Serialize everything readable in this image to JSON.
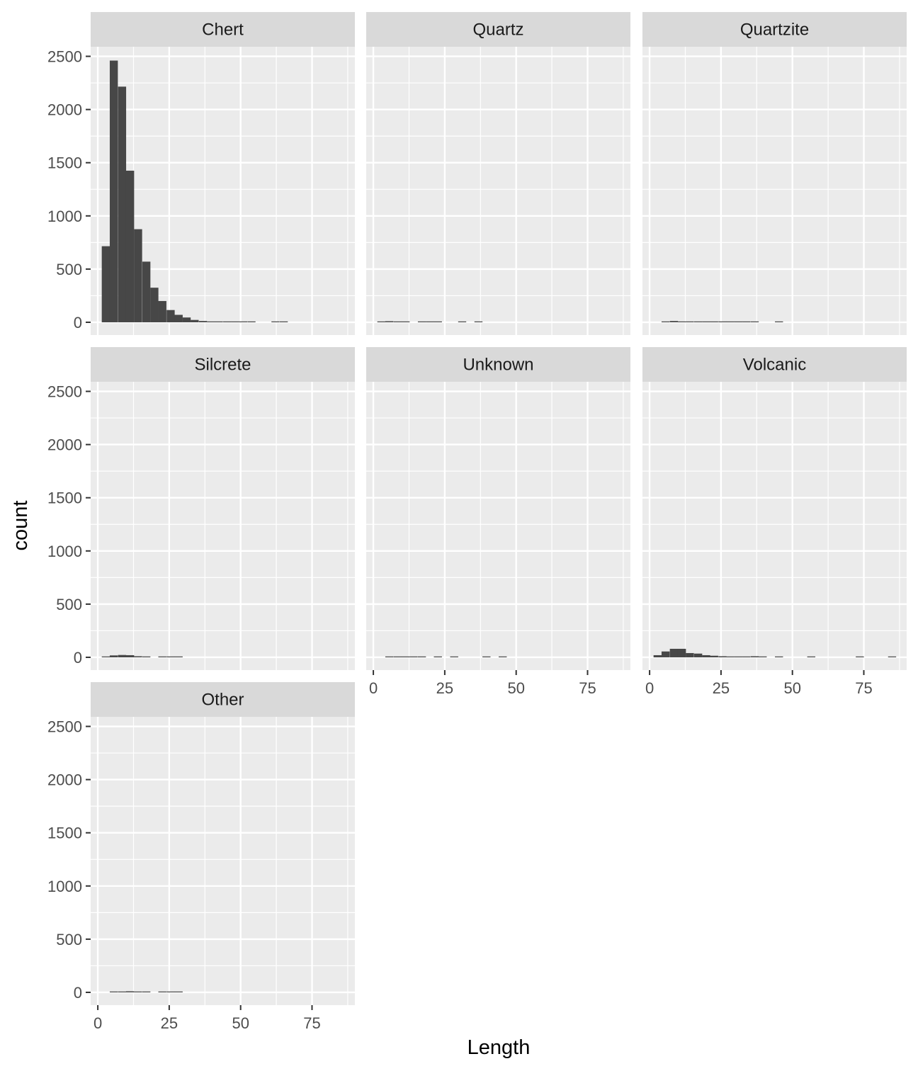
{
  "chart_data": {
    "type": "bar",
    "subtype": "faceted-histogram",
    "xlabel": "Length",
    "ylabel": "count",
    "xlim": [
      -2.5,
      90
    ],
    "ylim": [
      -120,
      2590
    ],
    "x_ticks": [
      0,
      25,
      50,
      75
    ],
    "y_ticks": [
      0,
      500,
      1000,
      1500,
      2000,
      2500
    ],
    "bin_width": 2.83,
    "grid": true,
    "colors": {
      "bar": "#474747",
      "panel": "#ebebeb",
      "strip": "#d9d9d9",
      "grid": "#ffffff"
    },
    "facets": [
      {
        "name": "Chert",
        "bins": [
          {
            "x": 2.8,
            "count": 715
          },
          {
            "x": 5.6,
            "count": 2460
          },
          {
            "x": 8.5,
            "count": 2215
          },
          {
            "x": 11.3,
            "count": 1425
          },
          {
            "x": 14.1,
            "count": 875
          },
          {
            "x": 17.0,
            "count": 570
          },
          {
            "x": 19.8,
            "count": 325
          },
          {
            "x": 22.6,
            "count": 200
          },
          {
            "x": 25.5,
            "count": 115
          },
          {
            "x": 28.3,
            "count": 70
          },
          {
            "x": 31.1,
            "count": 45
          },
          {
            "x": 33.9,
            "count": 22
          },
          {
            "x": 36.8,
            "count": 12
          },
          {
            "x": 39.6,
            "count": 8
          },
          {
            "x": 42.4,
            "count": 5
          },
          {
            "x": 45.3,
            "count": 4
          },
          {
            "x": 48.1,
            "count": 3
          },
          {
            "x": 50.9,
            "count": 2
          },
          {
            "x": 53.8,
            "count": 2
          },
          {
            "x": 62.2,
            "count": 2
          },
          {
            "x": 65.1,
            "count": 2
          }
        ]
      },
      {
        "name": "Quartz",
        "bins": [
          {
            "x": 2.8,
            "count": 5
          },
          {
            "x": 5.6,
            "count": 10
          },
          {
            "x": 8.5,
            "count": 8
          },
          {
            "x": 11.3,
            "count": 4
          },
          {
            "x": 17.0,
            "count": 4
          },
          {
            "x": 19.8,
            "count": 3
          },
          {
            "x": 22.6,
            "count": 3
          },
          {
            "x": 31.1,
            "count": 2
          },
          {
            "x": 36.8,
            "count": 2
          }
        ]
      },
      {
        "name": "Quartzite",
        "bins": [
          {
            "x": 5.6,
            "count": 4
          },
          {
            "x": 8.5,
            "count": 12
          },
          {
            "x": 11.3,
            "count": 8
          },
          {
            "x": 14.1,
            "count": 5
          },
          {
            "x": 17.0,
            "count": 5
          },
          {
            "x": 19.8,
            "count": 4
          },
          {
            "x": 22.6,
            "count": 4
          },
          {
            "x": 25.5,
            "count": 3
          },
          {
            "x": 28.3,
            "count": 3
          },
          {
            "x": 31.1,
            "count": 3
          },
          {
            "x": 33.9,
            "count": 3
          },
          {
            "x": 36.8,
            "count": 2
          },
          {
            "x": 45.3,
            "count": 2
          }
        ]
      },
      {
        "name": "Silcrete",
        "bins": [
          {
            "x": 2.8,
            "count": 5
          },
          {
            "x": 5.6,
            "count": 18
          },
          {
            "x": 8.5,
            "count": 22
          },
          {
            "x": 11.3,
            "count": 20
          },
          {
            "x": 14.1,
            "count": 10
          },
          {
            "x": 17.0,
            "count": 4
          },
          {
            "x": 22.6,
            "count": 3
          },
          {
            "x": 25.5,
            "count": 2
          },
          {
            "x": 28.3,
            "count": 2
          }
        ]
      },
      {
        "name": "Unknown",
        "bins": [
          {
            "x": 5.6,
            "count": 5
          },
          {
            "x": 8.5,
            "count": 6
          },
          {
            "x": 11.3,
            "count": 5
          },
          {
            "x": 14.1,
            "count": 4
          },
          {
            "x": 17.0,
            "count": 3
          },
          {
            "x": 22.6,
            "count": 3
          },
          {
            "x": 28.3,
            "count": 4
          },
          {
            "x": 39.6,
            "count": 2
          },
          {
            "x": 45.3,
            "count": 2
          }
        ]
      },
      {
        "name": "Volcanic",
        "bins": [
          {
            "x": 2.8,
            "count": 20
          },
          {
            "x": 5.6,
            "count": 55
          },
          {
            "x": 8.5,
            "count": 80
          },
          {
            "x": 11.3,
            "count": 80
          },
          {
            "x": 14.1,
            "count": 40
          },
          {
            "x": 17.0,
            "count": 35
          },
          {
            "x": 19.8,
            "count": 20
          },
          {
            "x": 22.6,
            "count": 15
          },
          {
            "x": 25.5,
            "count": 10
          },
          {
            "x": 28.3,
            "count": 8
          },
          {
            "x": 31.1,
            "count": 8
          },
          {
            "x": 33.9,
            "count": 5
          },
          {
            "x": 36.8,
            "count": 10
          },
          {
            "x": 39.6,
            "count": 5
          },
          {
            "x": 45.3,
            "count": 3
          },
          {
            "x": 56.6,
            "count": 2
          },
          {
            "x": 73.6,
            "count": 2
          },
          {
            "x": 84.9,
            "count": 2
          }
        ]
      },
      {
        "name": "Other",
        "bins": [
          {
            "x": 5.6,
            "count": 5
          },
          {
            "x": 8.5,
            "count": 6
          },
          {
            "x": 11.3,
            "count": 10
          },
          {
            "x": 14.1,
            "count": 6
          },
          {
            "x": 17.0,
            "count": 4
          },
          {
            "x": 22.6,
            "count": 2
          },
          {
            "x": 25.5,
            "count": 2
          },
          {
            "x": 28.3,
            "count": 2
          }
        ]
      }
    ]
  }
}
